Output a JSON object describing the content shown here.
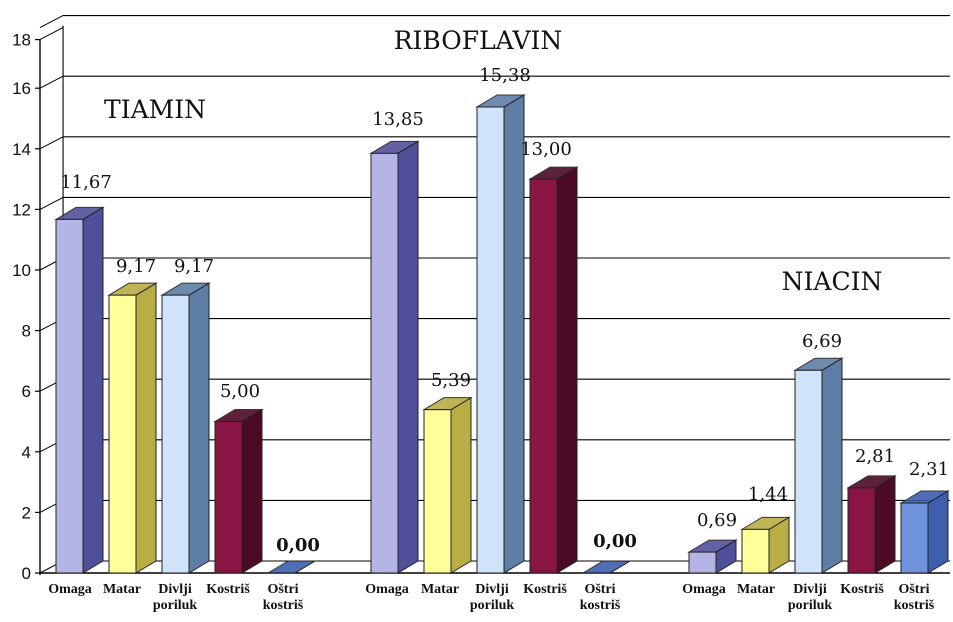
{
  "chart_data": {
    "type": "bar",
    "groups": [
      {
        "title": "TIAMIN",
        "categories": [
          "Omaga",
          "Matar",
          "Divlji poriluk",
          "Kostriš",
          "Oštri kostriš"
        ],
        "values": [
          11.67,
          9.17,
          9.17,
          5.0,
          0.0
        ],
        "value_labels": [
          "11,67",
          "9,17",
          "9,17",
          "5,00",
          "0,00"
        ]
      },
      {
        "title": "RIBOFLAVIN",
        "categories": [
          "Omaga",
          "Matar",
          "Divlji poriluk",
          "Kostriš",
          "Oštri kostriš"
        ],
        "values": [
          13.85,
          5.39,
          15.38,
          13.0,
          0.0
        ],
        "value_labels": [
          "13,85",
          "5,39",
          "15,38",
          "13,00",
          "0,00"
        ]
      },
      {
        "title": "NIACIN",
        "categories": [
          "Omaga",
          "Matar",
          "Divlji poriluk",
          "Kostriš",
          "Oštri kostriš"
        ],
        "values": [
          0.69,
          1.44,
          6.69,
          2.81,
          2.31
        ],
        "value_labels": [
          "0,69",
          "1,44",
          "6,69",
          "2,81",
          "2,31"
        ]
      }
    ],
    "y_ticks": [
      "0",
      "2",
      "4",
      "6",
      "8",
      "10",
      "12",
      "14",
      "16",
      "18"
    ],
    "ylim": [
      0,
      18
    ],
    "grid": true,
    "legend": "none",
    "colors": {
      "Omaga": [
        "#b4b4e6",
        "#50509a"
      ],
      "Matar": [
        "#ffff99",
        "#b9ae45"
      ],
      "Divlji poriluk": [
        "#cfe3fb",
        "#5f7ea6"
      ],
      "Kostriš": [
        "#8a1545",
        "#4c0b24"
      ],
      "Oštri kostriš": [
        "#6e92dc",
        "#3c5fae"
      ]
    }
  }
}
